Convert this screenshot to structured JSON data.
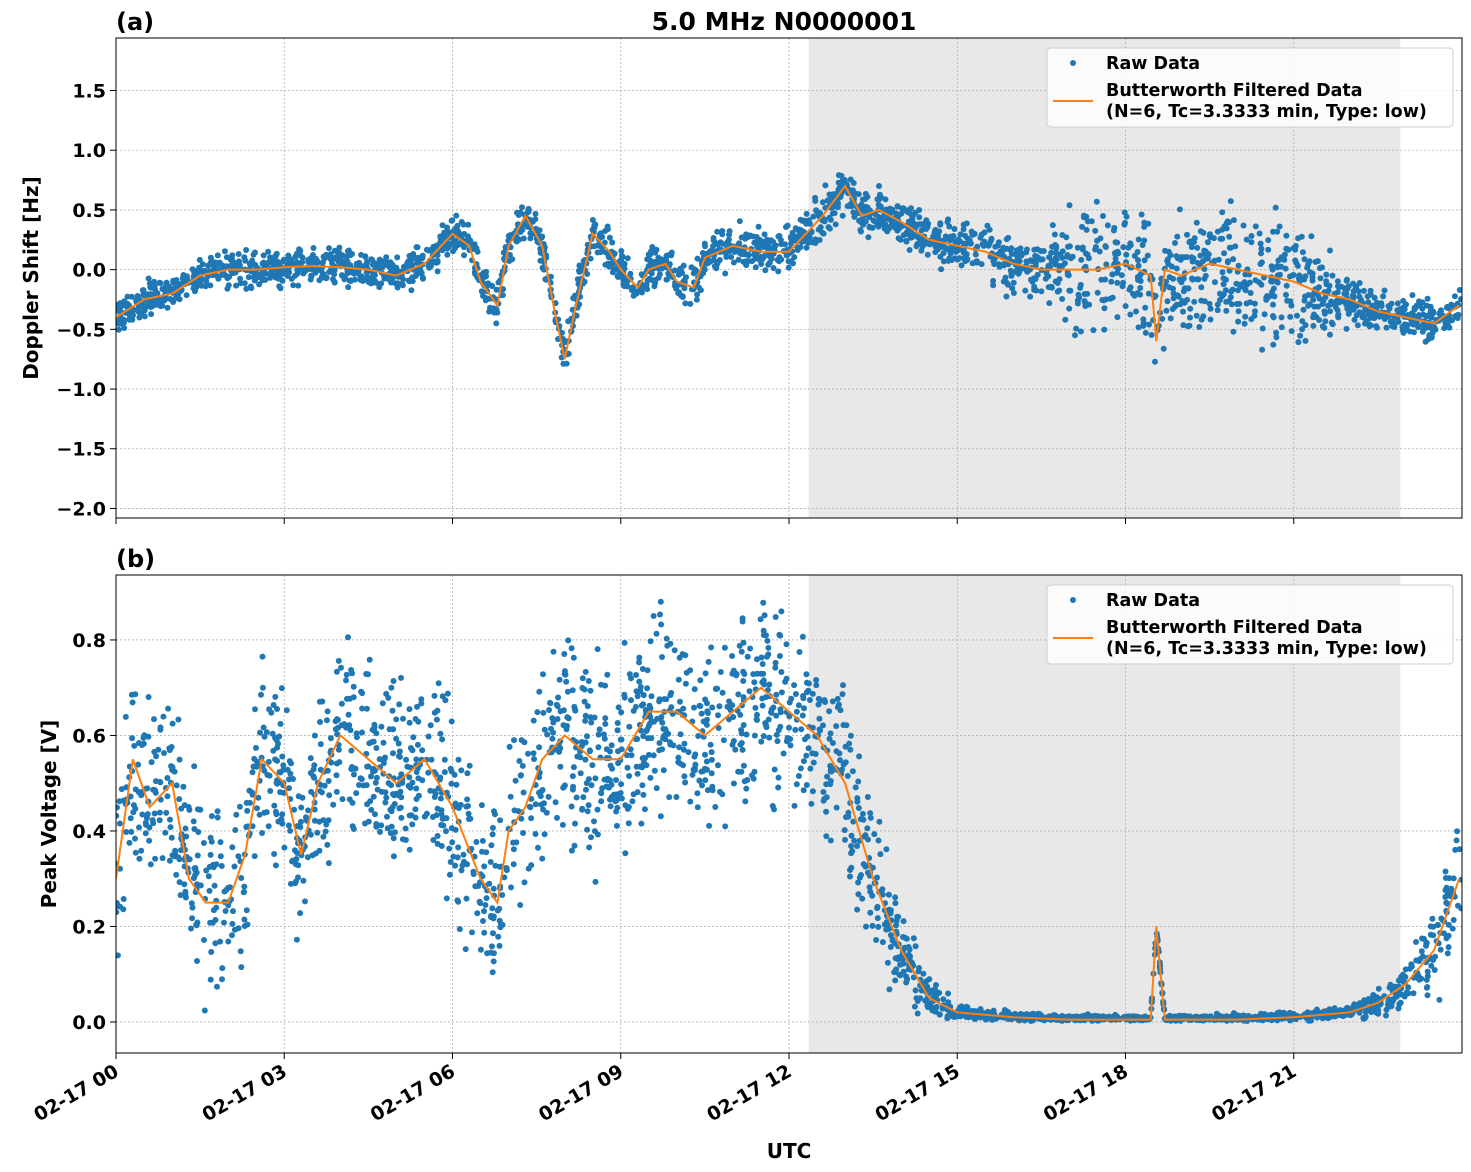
{
  "chart_data": [
    {
      "type": "scatter",
      "panel_label": "(a)",
      "title": "5.0 MHz N0000001",
      "xlabel": "",
      "ylabel": "Doppler Shift [Hz]",
      "xlim": [
        0,
        24
      ],
      "ylim": [
        -2.08,
        1.94
      ],
      "yticks": [
        -2.0,
        -1.5,
        -1.0,
        -0.5,
        0.0,
        0.5,
        1.0,
        1.5
      ],
      "grid": true,
      "shaded_interval_hours": [
        12.35,
        22.9
      ],
      "legend": {
        "placement": "top-right",
        "entries": [
          "Raw Data",
          "Butterworth Filtered Data",
          "(N=6, Tc=3.3333 min, Type: low)"
        ]
      },
      "series": [
        {
          "name": "Butterworth Filtered Data",
          "color": "#ff7f0e",
          "x": [
            0,
            0.5,
            1,
            1.5,
            2,
            2.5,
            3,
            3.5,
            4,
            4.5,
            5,
            5.5,
            6,
            6.3,
            6.5,
            6.8,
            7,
            7.3,
            7.6,
            7.8,
            8.0,
            8.2,
            8.5,
            8.8,
            9,
            9.3,
            9.5,
            9.8,
            10,
            10.3,
            10.5,
            11,
            11.5,
            12,
            12.3,
            12.6,
            13,
            13.3,
            13.6,
            14,
            14.5,
            15,
            15.5,
            16,
            16.5,
            17,
            17.5,
            18,
            18.45,
            18.55,
            18.7,
            19,
            19.5,
            20,
            20.5,
            21,
            21.5,
            22,
            22.5,
            23,
            23.5,
            23.95
          ],
          "y": [
            -0.4,
            -0.25,
            -0.2,
            -0.05,
            0,
            0,
            0.02,
            0.03,
            0.02,
            0,
            -0.05,
            0.05,
            0.3,
            0.2,
            -0.1,
            -0.3,
            0.2,
            0.45,
            0.2,
            -0.3,
            -0.75,
            -0.3,
            0.3,
            0.15,
            0,
            -0.15,
            0,
            0.05,
            -0.1,
            -0.15,
            0.1,
            0.2,
            0.15,
            0.15,
            0.3,
            0.45,
            0.7,
            0.45,
            0.5,
            0.4,
            0.25,
            0.2,
            0.15,
            0.05,
            0,
            0,
            0,
            0.05,
            -0.05,
            -0.6,
            0,
            -0.05,
            0.05,
            0,
            -0.05,
            -0.1,
            -0.2,
            -0.25,
            -0.35,
            -0.4,
            -0.45,
            -0.3
          ]
        },
        {
          "name": "Raw Data",
          "color": "#1f77b4",
          "spread_x": [
            0,
            6,
            12,
            15,
            16.5,
            17,
            21,
            22,
            24
          ],
          "spread_halfwidth": [
            0.2,
            0.22,
            0.25,
            0.25,
            0.4,
            0.7,
            0.7,
            0.3,
            0.2
          ]
        }
      ]
    },
    {
      "type": "scatter",
      "panel_label": "(b)",
      "xlabel": "UTC",
      "ylabel": "Peak Voltage [V]",
      "xlim": [
        0,
        24
      ],
      "ylim": [
        -0.065,
        0.936
      ],
      "yticks": [
        0.0,
        0.2,
        0.4,
        0.6,
        0.8
      ],
      "xticks": [
        0,
        3,
        6,
        9,
        12,
        15,
        18,
        21
      ],
      "xticklabels": [
        "02-17 00",
        "02-17 03",
        "02-17 06",
        "02-17 09",
        "02-17 12",
        "02-17 15",
        "02-17 18",
        "02-17 21"
      ],
      "grid": true,
      "shaded_interval_hours": [
        12.35,
        22.9
      ],
      "legend": {
        "placement": "top-right",
        "entries": [
          "Raw Data",
          "Butterworth Filtered Data",
          "(N=6, Tc=3.3333 min, Type: low)"
        ]
      },
      "series": [
        {
          "name": "Butterworth Filtered Data",
          "color": "#ff7f0e",
          "x": [
            0,
            0.3,
            0.6,
            1,
            1.3,
            1.6,
            2,
            2.3,
            2.6,
            3,
            3.3,
            3.6,
            4,
            4.5,
            5,
            5.5,
            6,
            6.5,
            6.8,
            7,
            7.3,
            7.6,
            8,
            8.5,
            9,
            9.5,
            10,
            10.5,
            11,
            11.5,
            12,
            12.5,
            13,
            13.5,
            14,
            14.5,
            15,
            16,
            17,
            18,
            18.45,
            18.55,
            18.7,
            19,
            20,
            21,
            22,
            22.5,
            23,
            23.5,
            23.95
          ],
          "y": [
            0.3,
            0.55,
            0.45,
            0.5,
            0.3,
            0.25,
            0.25,
            0.35,
            0.55,
            0.5,
            0.35,
            0.5,
            0.6,
            0.55,
            0.5,
            0.55,
            0.45,
            0.3,
            0.25,
            0.4,
            0.45,
            0.55,
            0.6,
            0.55,
            0.55,
            0.65,
            0.65,
            0.6,
            0.65,
            0.7,
            0.65,
            0.6,
            0.5,
            0.3,
            0.15,
            0.05,
            0.02,
            0.01,
            0.005,
            0.005,
            0.005,
            0.2,
            0.005,
            0.005,
            0.005,
            0.01,
            0.02,
            0.04,
            0.08,
            0.15,
            0.3
          ]
        },
        {
          "name": "Raw Data",
          "color": "#1f77b4",
          "spread_x": [
            0,
            13,
            14,
            15,
            18,
            22,
            23,
            24
          ],
          "spread_halfwidth": [
            0.27,
            0.27,
            0.12,
            0.02,
            0.01,
            0.02,
            0.08,
            0.2
          ]
        }
      ]
    }
  ]
}
